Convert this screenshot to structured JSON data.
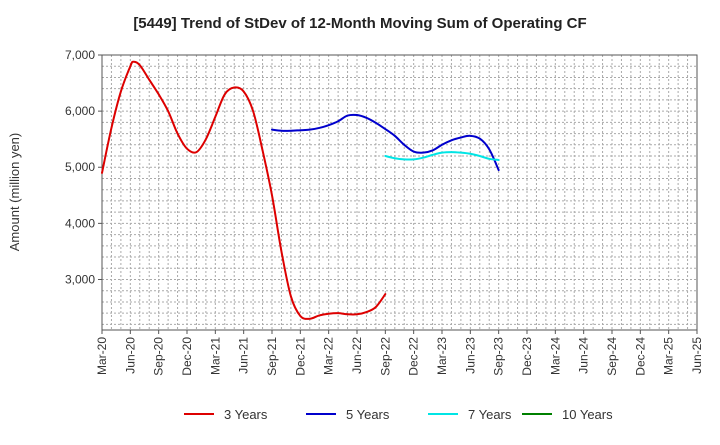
{
  "chart_data": {
    "type": "line",
    "title": "[5449]  Trend of StDev of 12-Month Moving Sum of Operating CF",
    "xlabel": "",
    "ylabel": "Amount (million yen)",
    "ylim": [
      2100,
      7000
    ],
    "yticks": [
      3000,
      4000,
      5000,
      6000,
      7000
    ],
    "ytick_labels": [
      "3,000",
      "4,000",
      "5,000",
      "6,000",
      "7,000"
    ],
    "x_tick_labels": [
      "Mar-20",
      "Jun-20",
      "Sep-20",
      "Dec-20",
      "Mar-21",
      "Jun-21",
      "Sep-21",
      "Dec-21",
      "Mar-22",
      "Jun-22",
      "Sep-22",
      "Dec-22",
      "Mar-23",
      "Jun-23",
      "Sep-23",
      "Dec-23",
      "Mar-24",
      "Jun-24",
      "Sep-24",
      "Dec-24",
      "Mar-25",
      "Jun-25"
    ],
    "grid": true,
    "legend_position": "bottom",
    "series": [
      {
        "name": "3 Years",
        "color": "#dd0000",
        "points": [
          [
            0,
            4900
          ],
          [
            1,
            5700
          ],
          [
            2,
            6350
          ],
          [
            3,
            6800
          ],
          [
            3.33,
            6880
          ],
          [
            4,
            6820
          ],
          [
            5,
            6560
          ],
          [
            6,
            6300
          ],
          [
            7,
            6000
          ],
          [
            8,
            5600
          ],
          [
            9,
            5330
          ],
          [
            10,
            5270
          ],
          [
            11,
            5500
          ],
          [
            12,
            5900
          ],
          [
            13,
            6300
          ],
          [
            14,
            6420
          ],
          [
            15,
            6350
          ],
          [
            16,
            6000
          ],
          [
            17,
            5300
          ],
          [
            18,
            4500
          ],
          [
            19,
            3500
          ],
          [
            20,
            2700
          ],
          [
            21,
            2350
          ],
          [
            22,
            2300
          ],
          [
            23,
            2360
          ],
          [
            24,
            2390
          ],
          [
            25,
            2400
          ],
          [
            26,
            2380
          ],
          [
            27,
            2380
          ],
          [
            28,
            2420
          ],
          [
            29,
            2510
          ],
          [
            30,
            2740
          ]
        ]
      },
      {
        "name": "5 Years",
        "color": "#0000cc",
        "points": [
          [
            18,
            5670
          ],
          [
            19,
            5650
          ],
          [
            20,
            5650
          ],
          [
            21,
            5660
          ],
          [
            22,
            5670
          ],
          [
            23,
            5700
          ],
          [
            24,
            5750
          ],
          [
            25,
            5820
          ],
          [
            26,
            5920
          ],
          [
            27,
            5930
          ],
          [
            28,
            5880
          ],
          [
            29,
            5790
          ],
          [
            30,
            5680
          ],
          [
            31,
            5560
          ],
          [
            32,
            5400
          ],
          [
            33,
            5280
          ],
          [
            34,
            5260
          ],
          [
            35,
            5300
          ],
          [
            36,
            5400
          ],
          [
            37,
            5480
          ],
          [
            38,
            5530
          ],
          [
            39,
            5560
          ],
          [
            40,
            5510
          ],
          [
            41,
            5320
          ],
          [
            42,
            4950
          ]
        ]
      },
      {
        "name": "7 Years",
        "color": "#00e5e5",
        "points": [
          [
            30,
            5200
          ],
          [
            31,
            5160
          ],
          [
            32,
            5140
          ],
          [
            33,
            5140
          ],
          [
            34,
            5170
          ],
          [
            35,
            5220
          ],
          [
            36,
            5260
          ],
          [
            37,
            5270
          ],
          [
            38,
            5260
          ],
          [
            39,
            5240
          ],
          [
            40,
            5200
          ],
          [
            41,
            5150
          ],
          [
            42,
            5130
          ]
        ]
      },
      {
        "name": "10 Years",
        "color": "#008000",
        "points": []
      }
    ]
  }
}
